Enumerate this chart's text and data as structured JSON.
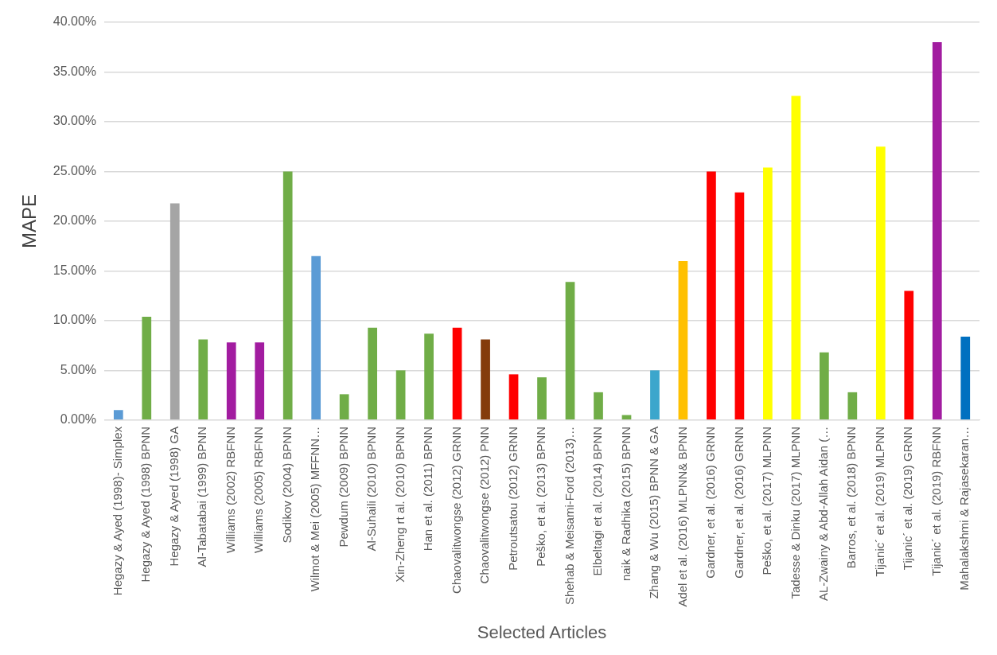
{
  "chart_data": {
    "type": "bar",
    "xlabel": "Selected Articles",
    "ylabel": "MAPE",
    "categories": [
      "Hegazy & Ayed (1998)- Simplex",
      "Hegazy & Ayed (1998) BPNN",
      "Hegazy & Ayed (1998) GA",
      "Al-Tabatabai (1999) BPNN",
      "Williams (2002) RBFNN",
      "Williams (2005) RBFNN",
      "Sodikov (2004) BPNN",
      "Wilmot & Mei (2005) MFFNN…",
      "Pewdum (2009) BPNN",
      "Al-Suhaili (2010) BPNN",
      "Xin-Zheng rt al. (2010) BPNN",
      "Han et al. (2011) BPNN",
      "Chaovalitwongse (2012) GRNN",
      "Chaovalitwongse (2012) PNN",
      "Petroutsatou (2012) GRNN",
      "Peško, et al. (2013) BPNN",
      "Shehab & Meisami-Ford (2013)…",
      "Elbeltagi et al. (2014) BPNN",
      "naik & Radhika (2015) BPNN",
      "Zhang & Wu (2015) BPNN & GA",
      "Adel et al. (2016) MLPNN& BPNN",
      "Gardner, et al. (2016) GRNN",
      "Gardner, et al. (2016) GRNN",
      "Peško, et al. (2017) MLPNN",
      "Tadesse & Dinku (2017) MLPNN",
      "AL-Zwainy & Abd-Allah Aidan (…",
      "Barros, et al. (2018) BPNN",
      "Tijanic´ et al. (2019) MLPNN",
      "Tijanic´ et al. (2019) GRNN",
      "Tijanic´ et al. (2019) RBFNN",
      "Mahalakshmi & Rajasekaran…"
    ],
    "values": [
      1.0,
      10.4,
      21.8,
      8.1,
      7.8,
      7.8,
      25.0,
      16.5,
      2.6,
      9.3,
      5.0,
      8.7,
      9.3,
      8.1,
      4.6,
      4.3,
      13.9,
      2.8,
      0.5,
      5.0,
      16.0,
      25.0,
      22.9,
      25.4,
      32.6,
      6.8,
      2.8,
      27.5,
      13.0,
      38.0,
      8.4
    ],
    "colors": [
      "#5b9bd5",
      "#70ad47",
      "#a5a5a5",
      "#70ad47",
      "#a21ca0",
      "#a21ca0",
      "#70ad47",
      "#5b9bd5",
      "#70ad47",
      "#70ad47",
      "#70ad47",
      "#70ad47",
      "#ff0000",
      "#843c0c",
      "#ff0000",
      "#70ad47",
      "#70ad47",
      "#70ad47",
      "#70ad47",
      "#3ca6cc",
      "#ffc000",
      "#ff0000",
      "#ff0000",
      "#ffff00",
      "#ffff00",
      "#70ad47",
      "#70ad47",
      "#ffff00",
      "#ff0000",
      "#a21ca0",
      "#0070c0"
    ],
    "ylim": [
      0,
      40
    ],
    "yticks": [
      {
        "value": 0,
        "label": "0.00%"
      },
      {
        "value": 5,
        "label": "5.00%"
      },
      {
        "value": 10,
        "label": "10.00%"
      },
      {
        "value": 15,
        "label": "15.00%"
      },
      {
        "value": 20,
        "label": "20.00%"
      },
      {
        "value": 25,
        "label": "25.00%"
      },
      {
        "value": 30,
        "label": "30.00%"
      },
      {
        "value": 35,
        "label": "35.00%"
      },
      {
        "value": 40,
        "label": "40.00%"
      }
    ],
    "grid": "y",
    "legend": false
  }
}
